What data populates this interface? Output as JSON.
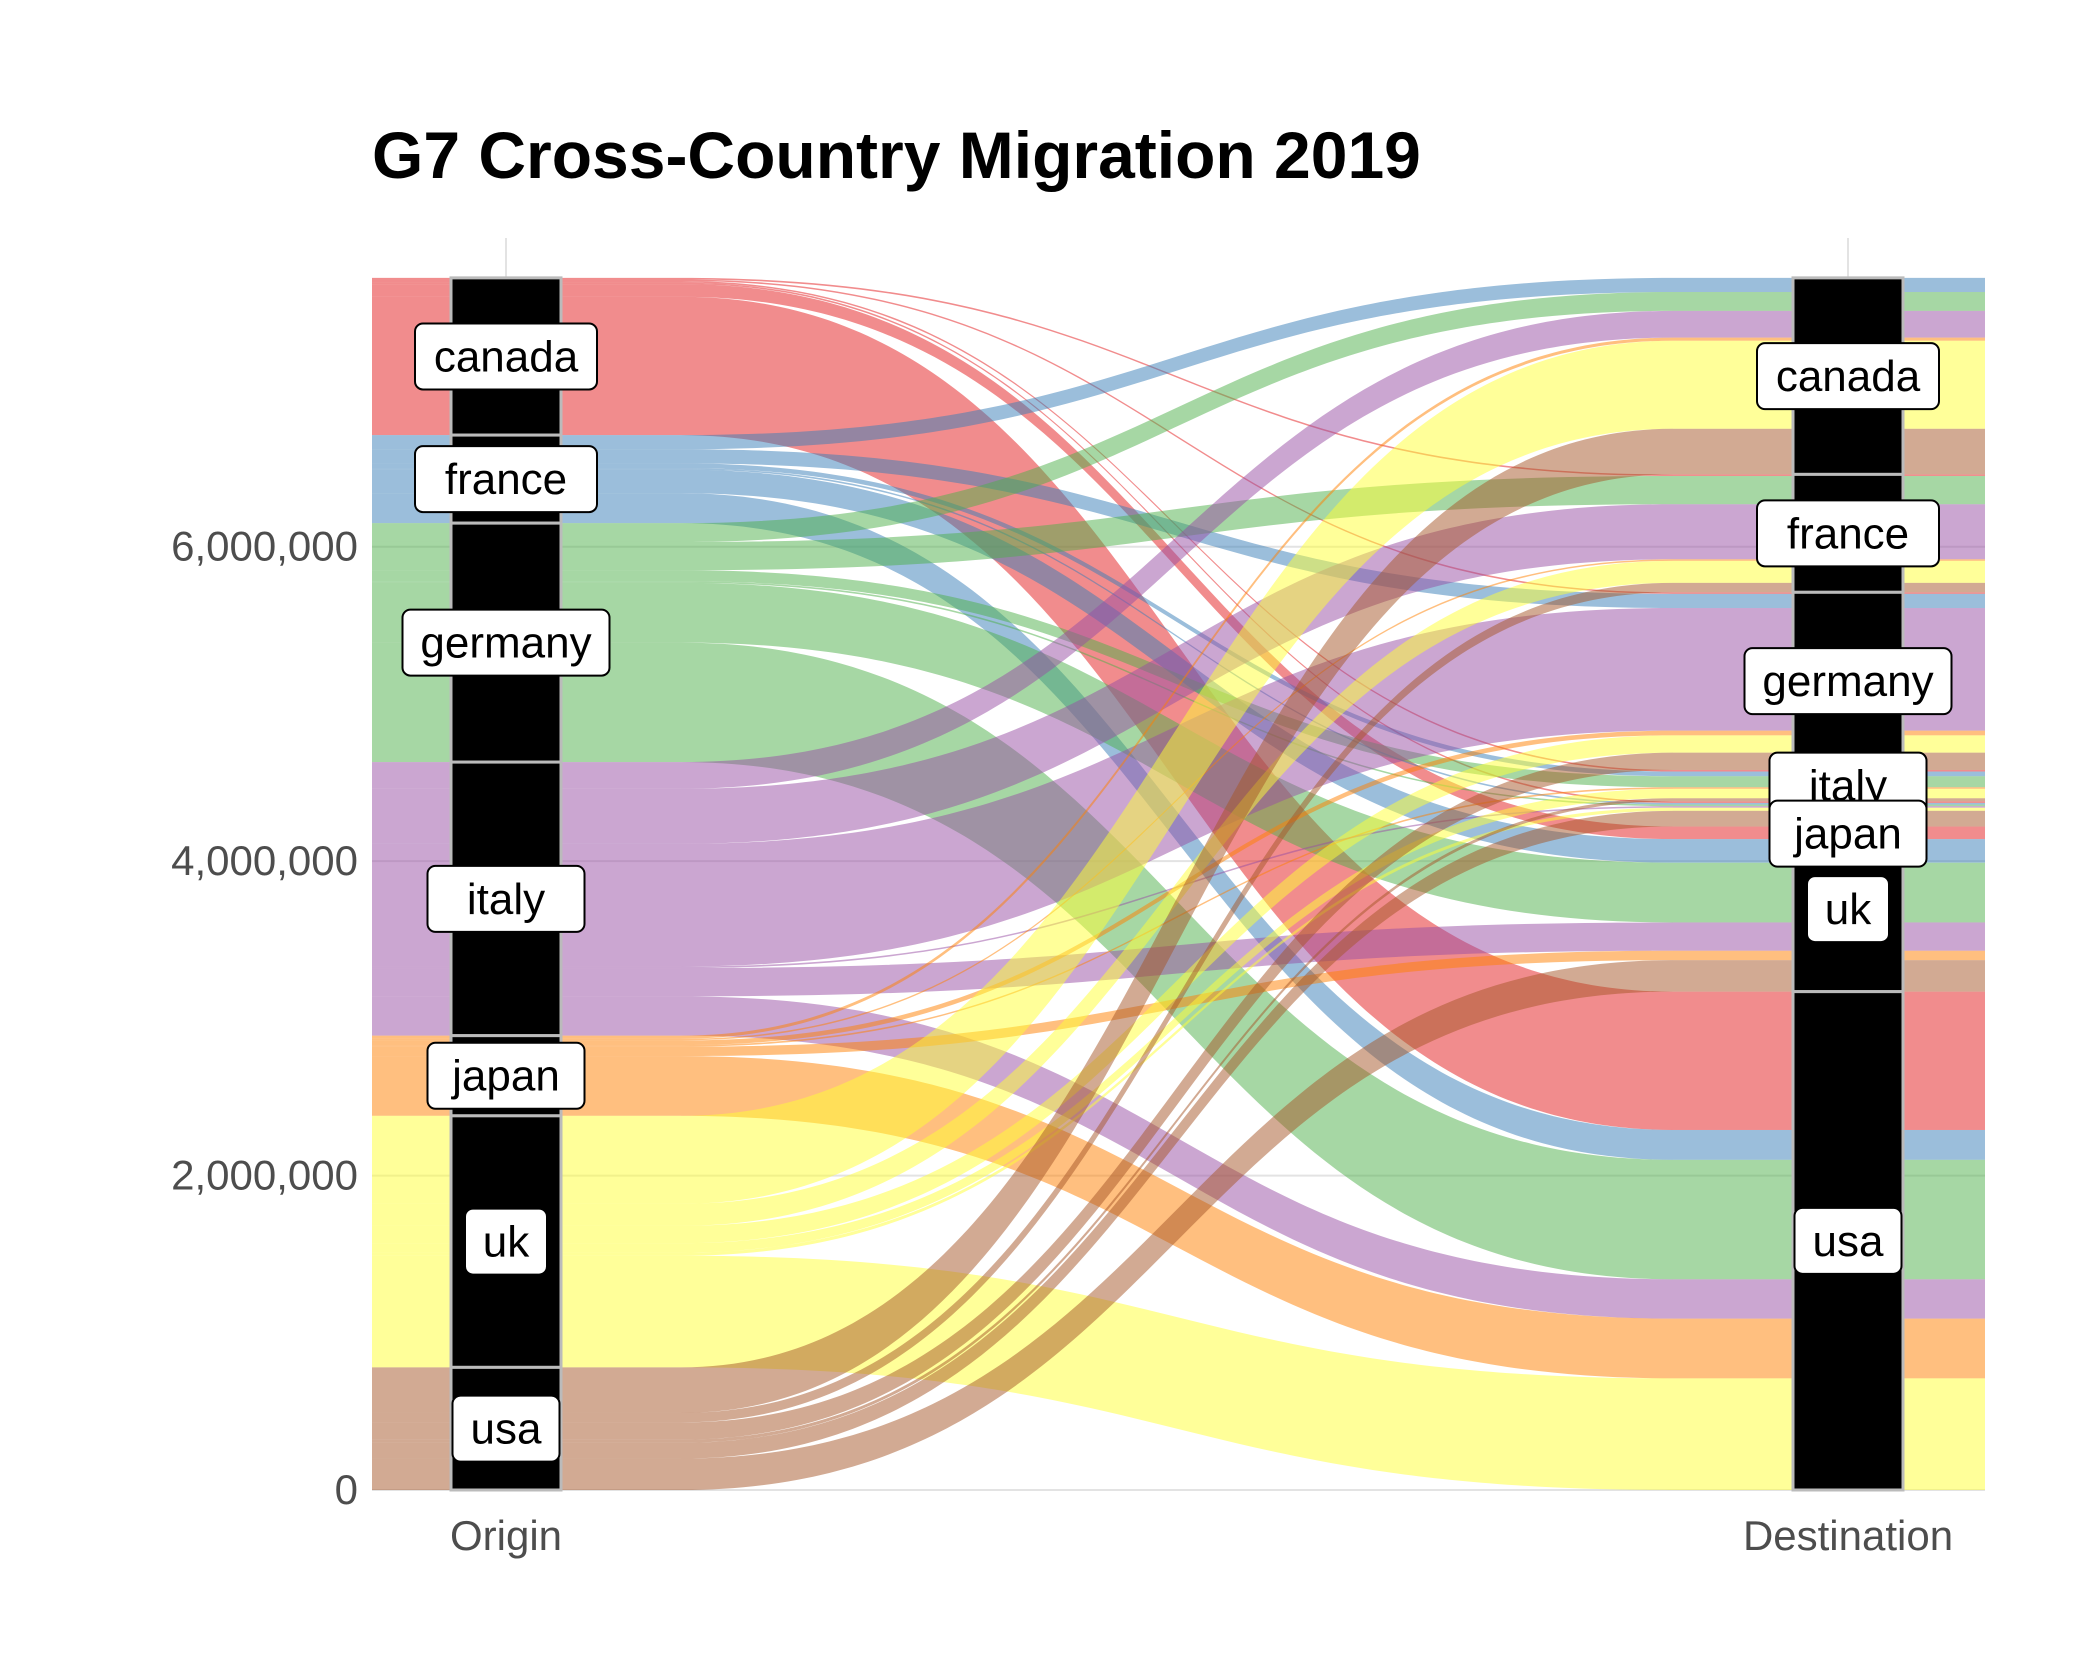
{
  "chart_data": {
    "type": "alluvial",
    "title": "G7 Cross-Country Migration 2019",
    "axes": [
      "Origin",
      "Destination"
    ],
    "ylim": [
      0,
      7900000
    ],
    "y_ticks": [
      0,
      2000000,
      4000000,
      6000000
    ],
    "y_tick_labels": [
      "0",
      "2,000,000",
      "4,000,000",
      "6,000,000"
    ],
    "countries": [
      "canada",
      "france",
      "germany",
      "italy",
      "japan",
      "uk",
      "usa"
    ],
    "colors": {
      "canada": "#E41A1C",
      "france": "#377EB8",
      "germany": "#4DAF4A",
      "italy": "#984EA3",
      "japan": "#FF7F00",
      "uk": "#FFFF33",
      "usa": "#A65628"
    },
    "flows": [
      {
        "origin": "canada",
        "destination": "france",
        "value": 10000
      },
      {
        "origin": "canada",
        "destination": "germany",
        "value": 10000
      },
      {
        "origin": "canada",
        "destination": "italy",
        "value": 10000
      },
      {
        "origin": "canada",
        "destination": "japan",
        "value": 10000
      },
      {
        "origin": "canada",
        "destination": "uk",
        "value": 80000
      },
      {
        "origin": "canada",
        "destination": "usa",
        "value": 880000
      },
      {
        "origin": "france",
        "destination": "canada",
        "value": 90000
      },
      {
        "origin": "france",
        "destination": "germany",
        "value": 90000
      },
      {
        "origin": "france",
        "destination": "italy",
        "value": 30000
      },
      {
        "origin": "france",
        "destination": "japan",
        "value": 10000
      },
      {
        "origin": "france",
        "destination": "uk",
        "value": 150000
      },
      {
        "origin": "france",
        "destination": "usa",
        "value": 190000
      },
      {
        "origin": "germany",
        "destination": "canada",
        "value": 120000
      },
      {
        "origin": "germany",
        "destination": "france",
        "value": 180000
      },
      {
        "origin": "germany",
        "destination": "italy",
        "value": 70000
      },
      {
        "origin": "germany",
        "destination": "japan",
        "value": 10000
      },
      {
        "origin": "germany",
        "destination": "uk",
        "value": 380000
      },
      {
        "origin": "germany",
        "destination": "usa",
        "value": 760000
      },
      {
        "origin": "italy",
        "destination": "canada",
        "value": 170000
      },
      {
        "origin": "italy",
        "destination": "france",
        "value": 350000
      },
      {
        "origin": "italy",
        "destination": "germany",
        "value": 780000
      },
      {
        "origin": "italy",
        "destination": "japan",
        "value": 10000
      },
      {
        "origin": "italy",
        "destination": "uk",
        "value": 180000
      },
      {
        "origin": "italy",
        "destination": "usa",
        "value": 250000
      },
      {
        "origin": "japan",
        "destination": "canada",
        "value": 20000
      },
      {
        "origin": "japan",
        "destination": "france",
        "value": 10000
      },
      {
        "origin": "japan",
        "destination": "germany",
        "value": 30000
      },
      {
        "origin": "japan",
        "destination": "italy",
        "value": 10000
      },
      {
        "origin": "japan",
        "destination": "uk",
        "value": 60000
      },
      {
        "origin": "japan",
        "destination": "usa",
        "value": 380000
      },
      {
        "origin": "uk",
        "destination": "canada",
        "value": 560000
      },
      {
        "origin": "uk",
        "destination": "france",
        "value": 140000
      },
      {
        "origin": "uk",
        "destination": "germany",
        "value": 110000
      },
      {
        "origin": "uk",
        "destination": "italy",
        "value": 60000
      },
      {
        "origin": "uk",
        "destination": "japan",
        "value": 20000
      },
      {
        "origin": "uk",
        "destination": "usa",
        "value": 710000
      },
      {
        "origin": "usa",
        "destination": "canada",
        "value": 290000
      },
      {
        "origin": "usa",
        "destination": "france",
        "value": 60000
      },
      {
        "origin": "usa",
        "destination": "germany",
        "value": 110000
      },
      {
        "origin": "usa",
        "destination": "italy",
        "value": 20000
      },
      {
        "origin": "usa",
        "destination": "japan",
        "value": 100000
      },
      {
        "origin": "usa",
        "destination": "uk",
        "value": 200000
      }
    ],
    "grid": true,
    "legend": "none"
  }
}
